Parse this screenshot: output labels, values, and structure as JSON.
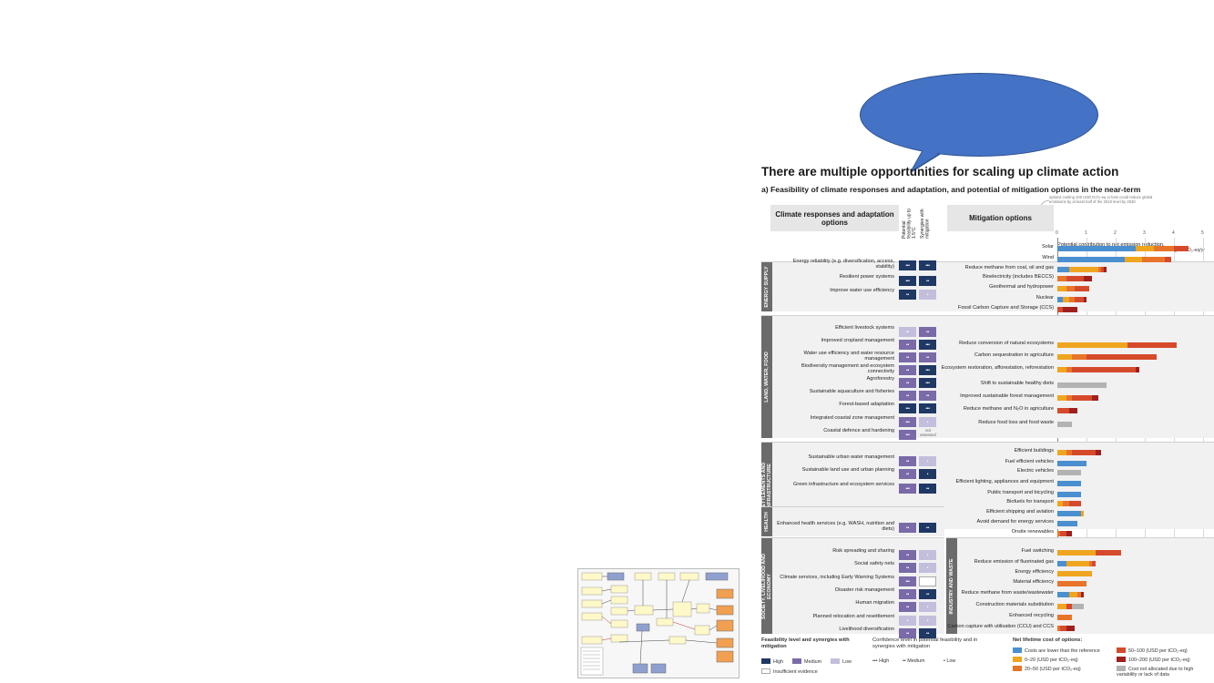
{
  "infographic": {
    "title": "There are multiple opportunities for scaling up climate action",
    "subtitle_label": "a)",
    "subtitle": "Feasibility of climate responses and adaptation, and potential of mitigation options in the near-term",
    "callout_note": "options costing 100 USD tCO₂-eq or less could reduce global emissions by at least half of the 2019 level by 2030",
    "left_header": "Climate responses and adaptation options",
    "col_feasibility": "Potential feasibility up to 1.5°C",
    "col_synergies": "Synergies with mitigation",
    "right_header": "Mitigation options",
    "contribution_label": "Potential contribution to net emission reduction,",
    "contribution_year": "2030",
    "units": "GtCO₂-eq/yr",
    "not_assessed": "not assessed",
    "sections": [
      {
        "label": "ENERGY SUPPLY",
        "options": [
          {
            "name": "Energy reliability (e.g. diversification, access, stability)",
            "feasibility": "high",
            "feasibility_conf": "•••",
            "synergy": "high",
            "synergy_conf": "•••"
          },
          {
            "name": "Resilient power systems",
            "feasibility": "high",
            "feasibility_conf": "•••",
            "synergy": "high",
            "synergy_conf": "••"
          },
          {
            "name": "Improve water use efficiency",
            "feasibility": "high",
            "feasibility_conf": "••",
            "synergy": "low",
            "synergy_conf": "•"
          }
        ]
      },
      {
        "label": "LAND, WATER, FOOD",
        "options": [
          {
            "name": "Efficient livestock systems",
            "feasibility": "low",
            "feasibility_conf": "••",
            "synergy": "medium",
            "synergy_conf": "••"
          },
          {
            "name": "Improved cropland management",
            "feasibility": "medium",
            "feasibility_conf": "••",
            "synergy": "high",
            "synergy_conf": "•••"
          },
          {
            "name": "Water use efficiency and water resource management",
            "feasibility": "medium",
            "feasibility_conf": "••",
            "synergy": "medium",
            "synergy_conf": "••"
          },
          {
            "name": "Biodiversity management and ecosystem connectivity",
            "feasibility": "medium",
            "feasibility_conf": "••",
            "synergy": "high",
            "synergy_conf": "•••"
          },
          {
            "name": "Agroforestry",
            "feasibility": "medium",
            "feasibility_conf": "••",
            "synergy": "high",
            "synergy_conf": "•••"
          },
          {
            "name": "Sustainable aquaculture and fisheries",
            "feasibility": "medium",
            "feasibility_conf": "••",
            "synergy": "medium",
            "synergy_conf": "••"
          },
          {
            "name": "Forest-based adaptation",
            "feasibility": "high",
            "feasibility_conf": "•••",
            "synergy": "high",
            "synergy_conf": "•••"
          },
          {
            "name": "Integrated coastal zone management",
            "feasibility": "medium",
            "feasibility_conf": "•••",
            "synergy": "low",
            "synergy_conf": "•"
          },
          {
            "name": "Coastal defence and hardening",
            "feasibility": "medium",
            "feasibility_conf": "•••",
            "synergy": "none",
            "synergy_conf": ""
          }
        ]
      },
      {
        "label": "SETTLEMENTS AND INFRASTRUCTURE",
        "options": [
          {
            "name": "Sustainable urban water management",
            "feasibility": "medium",
            "feasibility_conf": "••",
            "synergy": "low",
            "synergy_conf": "•"
          },
          {
            "name": "Sustainable land use and urban planning",
            "feasibility": "medium",
            "feasibility_conf": "••",
            "synergy": "high",
            "synergy_conf": "•"
          },
          {
            "name": "Green infrastructure and ecosystem services",
            "feasibility": "medium",
            "feasibility_conf": "•••",
            "synergy": "high",
            "synergy_conf": "••"
          }
        ]
      },
      {
        "label": "HEALTH",
        "options": [
          {
            "name": "Enhanced health services (e.g. WASH, nutrition and diets)",
            "feasibility": "medium",
            "feasibility_conf": "••",
            "synergy": "high",
            "synergy_conf": "••"
          }
        ]
      },
      {
        "label": "SOCIETY, LIVELIHOOD AND ECONOMY",
        "options": [
          {
            "name": "Risk spreading and sharing",
            "feasibility": "medium",
            "feasibility_conf": "••",
            "synergy": "low",
            "synergy_conf": "•"
          },
          {
            "name": "Social safety nets",
            "feasibility": "medium",
            "feasibility_conf": "••",
            "synergy": "low",
            "synergy_conf": "•"
          },
          {
            "name": "Climate services, including Early Warning Systems",
            "feasibility": "medium",
            "feasibility_conf": "•••",
            "synergy": "none",
            "synergy_conf": ""
          },
          {
            "name": "Disaster risk management",
            "feasibility": "medium",
            "feasibility_conf": "••",
            "synergy": "high",
            "synergy_conf": "••"
          },
          {
            "name": "Human migration",
            "feasibility": "medium",
            "feasibility_conf": "••",
            "synergy": "low",
            "synergy_conf": "•"
          },
          {
            "name": "Planned relocation and resettlement",
            "feasibility": "low",
            "feasibility_conf": "•",
            "synergy": "low",
            "synergy_conf": "•"
          },
          {
            "name": "Livelihood diversification",
            "feasibility": "medium",
            "feasibility_conf": "••",
            "synergy": "high",
            "synergy_conf": "••"
          }
        ]
      }
    ],
    "right_sections": [
      {
        "label": "INDUSTRY AND WASTE"
      }
    ],
    "legend": {
      "feasibility_title": "Feasibility level and synergies with mitigation",
      "feasibility_levels": [
        "High",
        "Medium",
        "Low"
      ],
      "insufficient": "Insufficient evidence",
      "confidence_title": "Confidence level in potential feasibility and in synergies with mitigation",
      "confidence_levels": [
        {
          "dots": "•••",
          "label": "High"
        },
        {
          "dots": "••",
          "label": "Medium"
        },
        {
          "dots": "•",
          "label": "Low"
        }
      ],
      "cost_title": "Net lifetime cost of options:",
      "costs": [
        {
          "label": "Costs are lower than the reference",
          "color": "#4a8fd0"
        },
        {
          "label": "0–20 (USD per tCO₂-eq)",
          "color": "#f0a520"
        },
        {
          "label": "20–50 (USD per tCO₂-eq)",
          "color": "#e8742a"
        },
        {
          "label": "50–100 (USD per tCO₂-eq)",
          "color": "#d64a2c"
        },
        {
          "label": "100–200 (USD per tCO₂-eq)",
          "color": "#a0201e"
        },
        {
          "label": "Cost not allocated due to high variability or lack of data",
          "color": "#b3b3b3"
        }
      ]
    }
  },
  "chart_data": {
    "type": "bar",
    "title": "Potential contribution to net emission reduction, 2030",
    "xlabel": "GtCO₂-eq/yr",
    "xlim": [
      0,
      5
    ],
    "ticks": [
      "0",
      "1",
      "2",
      "3",
      "4",
      "5"
    ],
    "categories": [
      "Solar",
      "Wind",
      "Reduce methane from coal, oil and gas",
      "Bioelectricity (includes BECCS)",
      "Geothermal and hydropower",
      "Nuclear",
      "Fossil Carbon Capture and Storage (CCS)",
      "Reduce conversion of natural ecosystems",
      "Carbon sequestration in agriculture",
      "Ecosystem restoration, afforestation, reforestation",
      "Shift to sustainable healthy diets",
      "Improved sustainable forest management",
      "Reduce methane and N₂O in agriculture",
      "Reduce food loss and food waste",
      "Efficient buildings",
      "Fuel efficient vehicles",
      "Electric vehicles",
      "Efficient lighting, appliances and equipment",
      "Public transport and bicycling",
      "Biofuels for transport",
      "Efficient shipping and aviation",
      "Avoid demand for energy services",
      "Onsite renewables",
      "Fuel switching",
      "Reduce emission of fluorinated gas",
      "Energy efficiency",
      "Material efficiency",
      "Reduce methane from waste/wastewater",
      "Construction materials substitution",
      "Enhanced recycling",
      "Carbon capture with utilisation (CCU) and CCS"
    ],
    "series": [
      {
        "name": "Costs are lower than the reference",
        "values": [
          2.7,
          2.3,
          0.4,
          0,
          0,
          0.2,
          0,
          0,
          0,
          0,
          0,
          0,
          0,
          0,
          0,
          1.0,
          0,
          0.8,
          0.8,
          0,
          0.8,
          0.7,
          0,
          0,
          0.3,
          0,
          0,
          0.4,
          0,
          0,
          0
        ]
      },
      {
        "name": "0–20 (USD per tCO₂-eq)",
        "values": [
          0.6,
          0.6,
          1.0,
          0,
          0.3,
          0.2,
          0,
          2.4,
          0.5,
          0.3,
          0,
          0.3,
          0,
          0,
          0.3,
          0,
          0,
          0,
          0,
          0.2,
          0.1,
          0,
          0,
          1.3,
          0.8,
          1.2,
          0,
          0.3,
          0.3,
          0,
          0
        ]
      },
      {
        "name": "20–50 (USD per tCO₂-eq)",
        "values": [
          0.7,
          0.8,
          0.1,
          0.3,
          0.3,
          0.2,
          0,
          0,
          0.5,
          0.2,
          0,
          0.2,
          0,
          0,
          0.2,
          0,
          0,
          0,
          0,
          0.2,
          0,
          0,
          0.1,
          0,
          0.1,
          0,
          1.0,
          0.1,
          0,
          0.5,
          0.1
        ]
      },
      {
        "name": "50–100 (USD per tCO₂-eq)",
        "values": [
          0.5,
          0.2,
          0.1,
          0.6,
          0.5,
          0.3,
          0.2,
          1.7,
          2.4,
          2.2,
          0,
          0.7,
          0.4,
          0,
          0.8,
          0,
          0,
          0,
          0,
          0.4,
          0,
          0,
          0.2,
          0.9,
          0.1,
          0,
          0,
          0,
          0.2,
          0,
          0.2
        ]
      },
      {
        "name": "100–200 (USD per tCO₂-eq)",
        "values": [
          0,
          0,
          0.1,
          0.3,
          0,
          0.1,
          0.5,
          0,
          0,
          0.1,
          0,
          0.2,
          0.3,
          0,
          0.2,
          0,
          0,
          0,
          0,
          0,
          0,
          0,
          0.2,
          0,
          0,
          0,
          0,
          0.1,
          0,
          0,
          0.3
        ]
      },
      {
        "name": "Cost not allocated due to high variability or lack of data",
        "values": [
          0,
          0,
          0,
          0,
          0,
          0,
          0,
          0,
          0,
          0,
          1.7,
          0,
          0,
          0.5,
          0,
          0,
          0.8,
          0,
          0,
          0,
          0,
          0,
          0,
          0,
          0,
          0,
          0,
          0,
          0.4,
          0,
          0
        ]
      }
    ],
    "colors": [
      "#4a8fd0",
      "#f0a520",
      "#e8742a",
      "#d64a2c",
      "#a0201e",
      "#b3b3b3"
    ],
    "grid": true
  }
}
